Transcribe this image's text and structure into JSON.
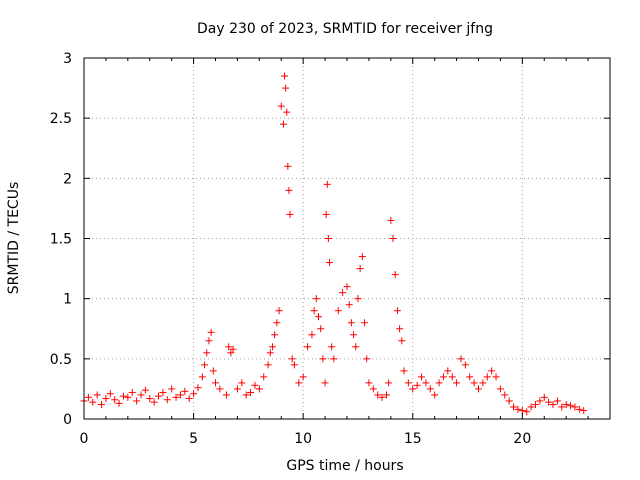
{
  "chart_data": {
    "type": "scatter",
    "title": "Day 230 of 2023, SRMTID for receiver jfng",
    "xlabel": "GPS time / hours",
    "ylabel": "SRMTID / TECUs",
    "xlim": [
      0,
      24
    ],
    "ylim": [
      0,
      3
    ],
    "xticks": [
      0,
      5,
      10,
      15,
      20
    ],
    "xtick_labels": [
      "0",
      "5",
      "10",
      "15",
      "20"
    ],
    "yticks": [
      0,
      0.5,
      1,
      1.5,
      2,
      2.5,
      3
    ],
    "ytick_labels": [
      "0",
      "0.5",
      "1",
      "1.5",
      "2",
      "2.5",
      "3"
    ],
    "grid": true,
    "marker": "+",
    "color": "#ff0000",
    "series": [
      {
        "name": "SRMTID",
        "x": [
          0.0,
          0.2,
          0.4,
          0.6,
          0.8,
          1.0,
          1.2,
          1.4,
          1.6,
          1.8,
          2.0,
          2.2,
          2.4,
          2.6,
          2.8,
          3.0,
          3.2,
          3.4,
          3.6,
          3.8,
          4.0,
          4.2,
          4.4,
          4.6,
          4.8,
          5.0,
          5.2,
          5.4,
          5.5,
          5.6,
          5.7,
          5.8,
          5.9,
          6.0,
          6.2,
          6.5,
          6.6,
          6.7,
          6.8,
          7.0,
          7.2,
          7.4,
          7.6,
          7.8,
          8.0,
          8.2,
          8.4,
          8.5,
          8.6,
          8.7,
          8.8,
          8.9,
          9.0,
          9.1,
          9.15,
          9.2,
          9.25,
          9.3,
          9.35,
          9.4,
          9.5,
          9.6,
          9.8,
          10.0,
          10.2,
          10.4,
          10.5,
          10.6,
          10.7,
          10.8,
          10.9,
          11.0,
          11.05,
          11.1,
          11.15,
          11.2,
          11.3,
          11.4,
          11.6,
          11.8,
          12.0,
          12.1,
          12.2,
          12.3,
          12.4,
          12.5,
          12.6,
          12.7,
          12.8,
          12.9,
          13.0,
          13.2,
          13.4,
          13.6,
          13.8,
          13.9,
          14.0,
          14.1,
          14.2,
          14.3,
          14.4,
          14.5,
          14.6,
          14.8,
          15.0,
          15.2,
          15.4,
          15.6,
          15.8,
          16.0,
          16.2,
          16.4,
          16.6,
          16.8,
          17.0,
          17.2,
          17.4,
          17.6,
          17.8,
          18.0,
          18.2,
          18.4,
          18.6,
          18.8,
          19.0,
          19.2,
          19.4,
          19.6,
          19.8,
          20.0,
          20.2,
          20.4,
          20.6,
          20.8,
          21.0,
          21.2,
          21.4,
          21.6,
          21.8,
          22.0,
          22.2,
          22.4,
          22.6,
          22.8
        ],
        "y": [
          0.15,
          0.18,
          0.14,
          0.2,
          0.12,
          0.17,
          0.21,
          0.16,
          0.13,
          0.19,
          0.18,
          0.22,
          0.15,
          0.2,
          0.24,
          0.17,
          0.14,
          0.19,
          0.22,
          0.16,
          0.25,
          0.18,
          0.2,
          0.23,
          0.17,
          0.21,
          0.26,
          0.35,
          0.45,
          0.55,
          0.65,
          0.72,
          0.4,
          0.3,
          0.25,
          0.2,
          0.6,
          0.55,
          0.58,
          0.25,
          0.3,
          0.2,
          0.22,
          0.28,
          0.25,
          0.35,
          0.45,
          0.55,
          0.6,
          0.7,
          0.8,
          0.9,
          2.6,
          2.45,
          2.85,
          2.75,
          2.55,
          2.1,
          1.9,
          1.7,
          0.5,
          0.45,
          0.3,
          0.35,
          0.6,
          0.7,
          0.9,
          1.0,
          0.85,
          0.75,
          0.5,
          0.3,
          1.7,
          1.95,
          1.5,
          1.3,
          0.6,
          0.5,
          0.9,
          1.05,
          1.1,
          0.95,
          0.8,
          0.7,
          0.6,
          1.0,
          1.25,
          1.35,
          0.8,
          0.5,
          0.3,
          0.25,
          0.2,
          0.18,
          0.2,
          0.3,
          1.65,
          1.5,
          1.2,
          0.9,
          0.75,
          0.65,
          0.4,
          0.3,
          0.25,
          0.28,
          0.35,
          0.3,
          0.25,
          0.2,
          0.3,
          0.35,
          0.4,
          0.35,
          0.3,
          0.5,
          0.45,
          0.35,
          0.3,
          0.25,
          0.3,
          0.35,
          0.4,
          0.35,
          0.25,
          0.2,
          0.15,
          0.1,
          0.08,
          0.07,
          0.06,
          0.1,
          0.12,
          0.15,
          0.18,
          0.14,
          0.12,
          0.15,
          0.1,
          0.12,
          0.11,
          0.1,
          0.08,
          0.07
        ]
      }
    ]
  }
}
